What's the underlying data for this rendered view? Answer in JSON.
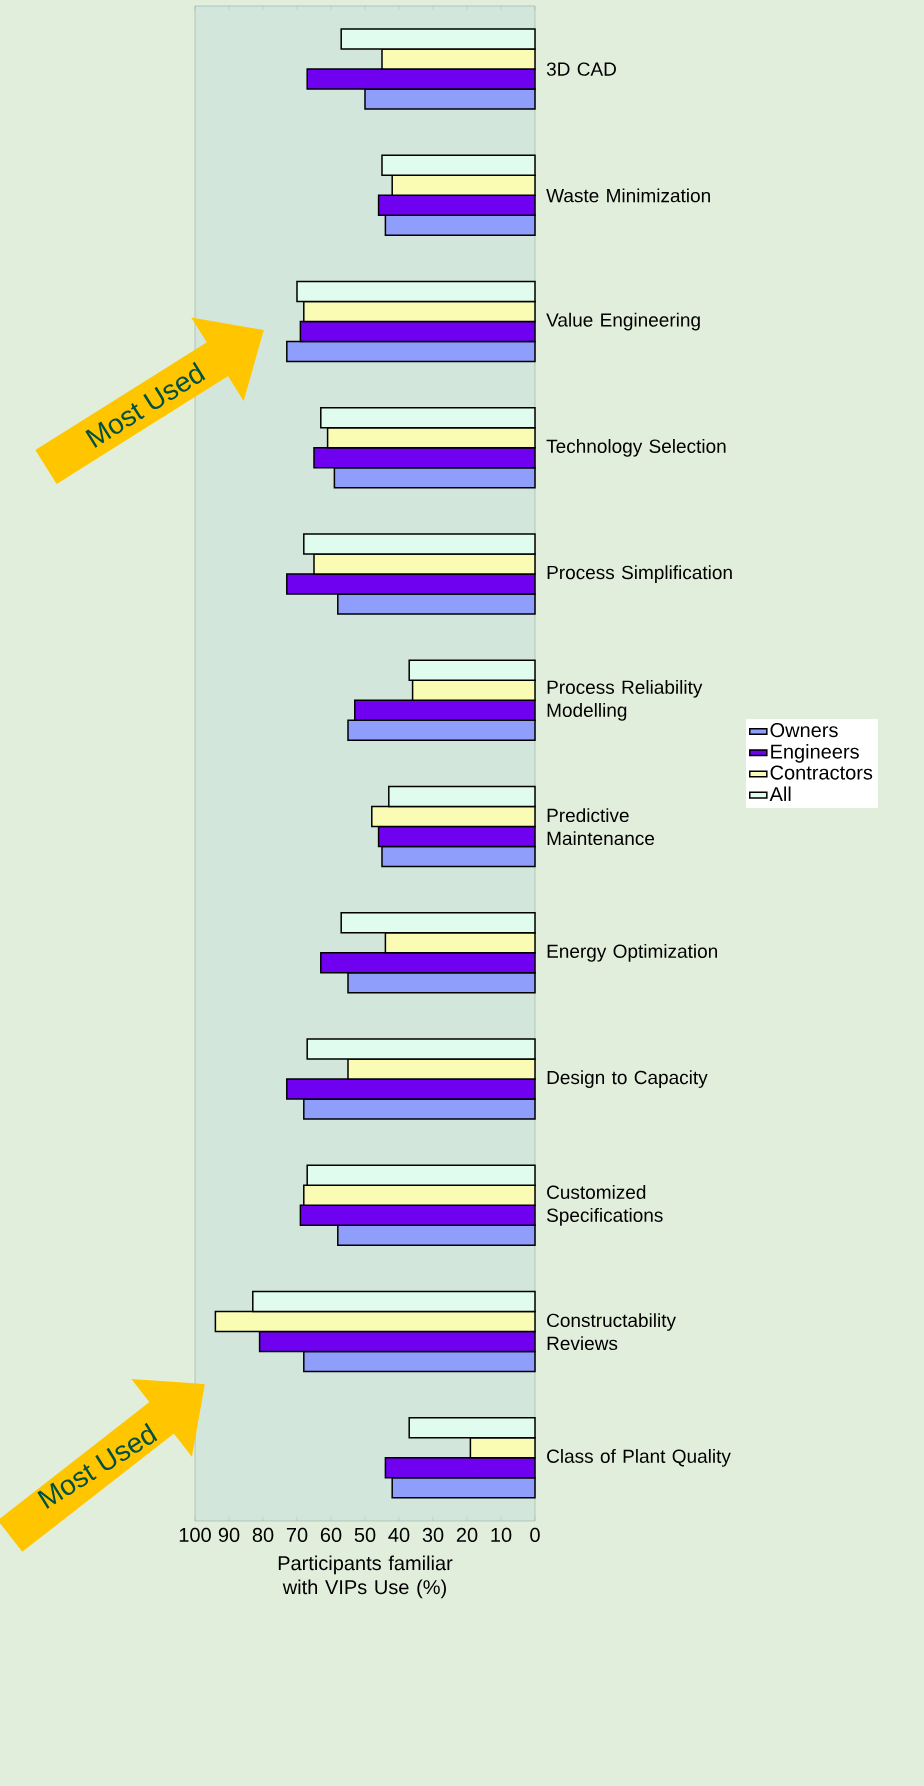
{
  "chart_data": {
    "type": "bar",
    "orientation": "horizontal",
    "xlabel": "Participants familiar with VIPs Use (%)",
    "categories": [
      "3D CAD",
      "Waste Minimization",
      "Value Engineering",
      "Technology Selection",
      "Process Simplification",
      "Process Reliability Modelling",
      "Predictive Maintenance",
      "Energy Optimization",
      "Design to Capacity",
      "Customized Specifications",
      "Constructability Reviews",
      "Class of Plant Quality"
    ],
    "series": [
      {
        "name": "Owners",
        "color": "#8f9dfb",
        "values": [
          50,
          44,
          73,
          59,
          58,
          55,
          45,
          55,
          68,
          58,
          68,
          42
        ]
      },
      {
        "name": "Engineers",
        "color": "#7000f0",
        "values": [
          67,
          46,
          69,
          65,
          73,
          53,
          46,
          63,
          73,
          69,
          81,
          44
        ]
      },
      {
        "name": "Contractors",
        "color": "#fafcb4",
        "values": [
          45,
          42,
          68,
          61,
          65,
          36,
          48,
          44,
          55,
          68,
          94,
          19
        ]
      },
      {
        "name": "All",
        "color": "#e0fcee",
        "values": [
          57,
          45,
          70,
          63,
          68,
          37,
          43,
          57,
          67,
          67,
          83,
          37
        ]
      }
    ],
    "xlim": [
      100,
      0
    ],
    "xticks": [
      0,
      10,
      20,
      30,
      40,
      50,
      60,
      70,
      80,
      90,
      100
    ],
    "legend": "right",
    "annotations": [
      "Most Used",
      "Most Used"
    ]
  }
}
